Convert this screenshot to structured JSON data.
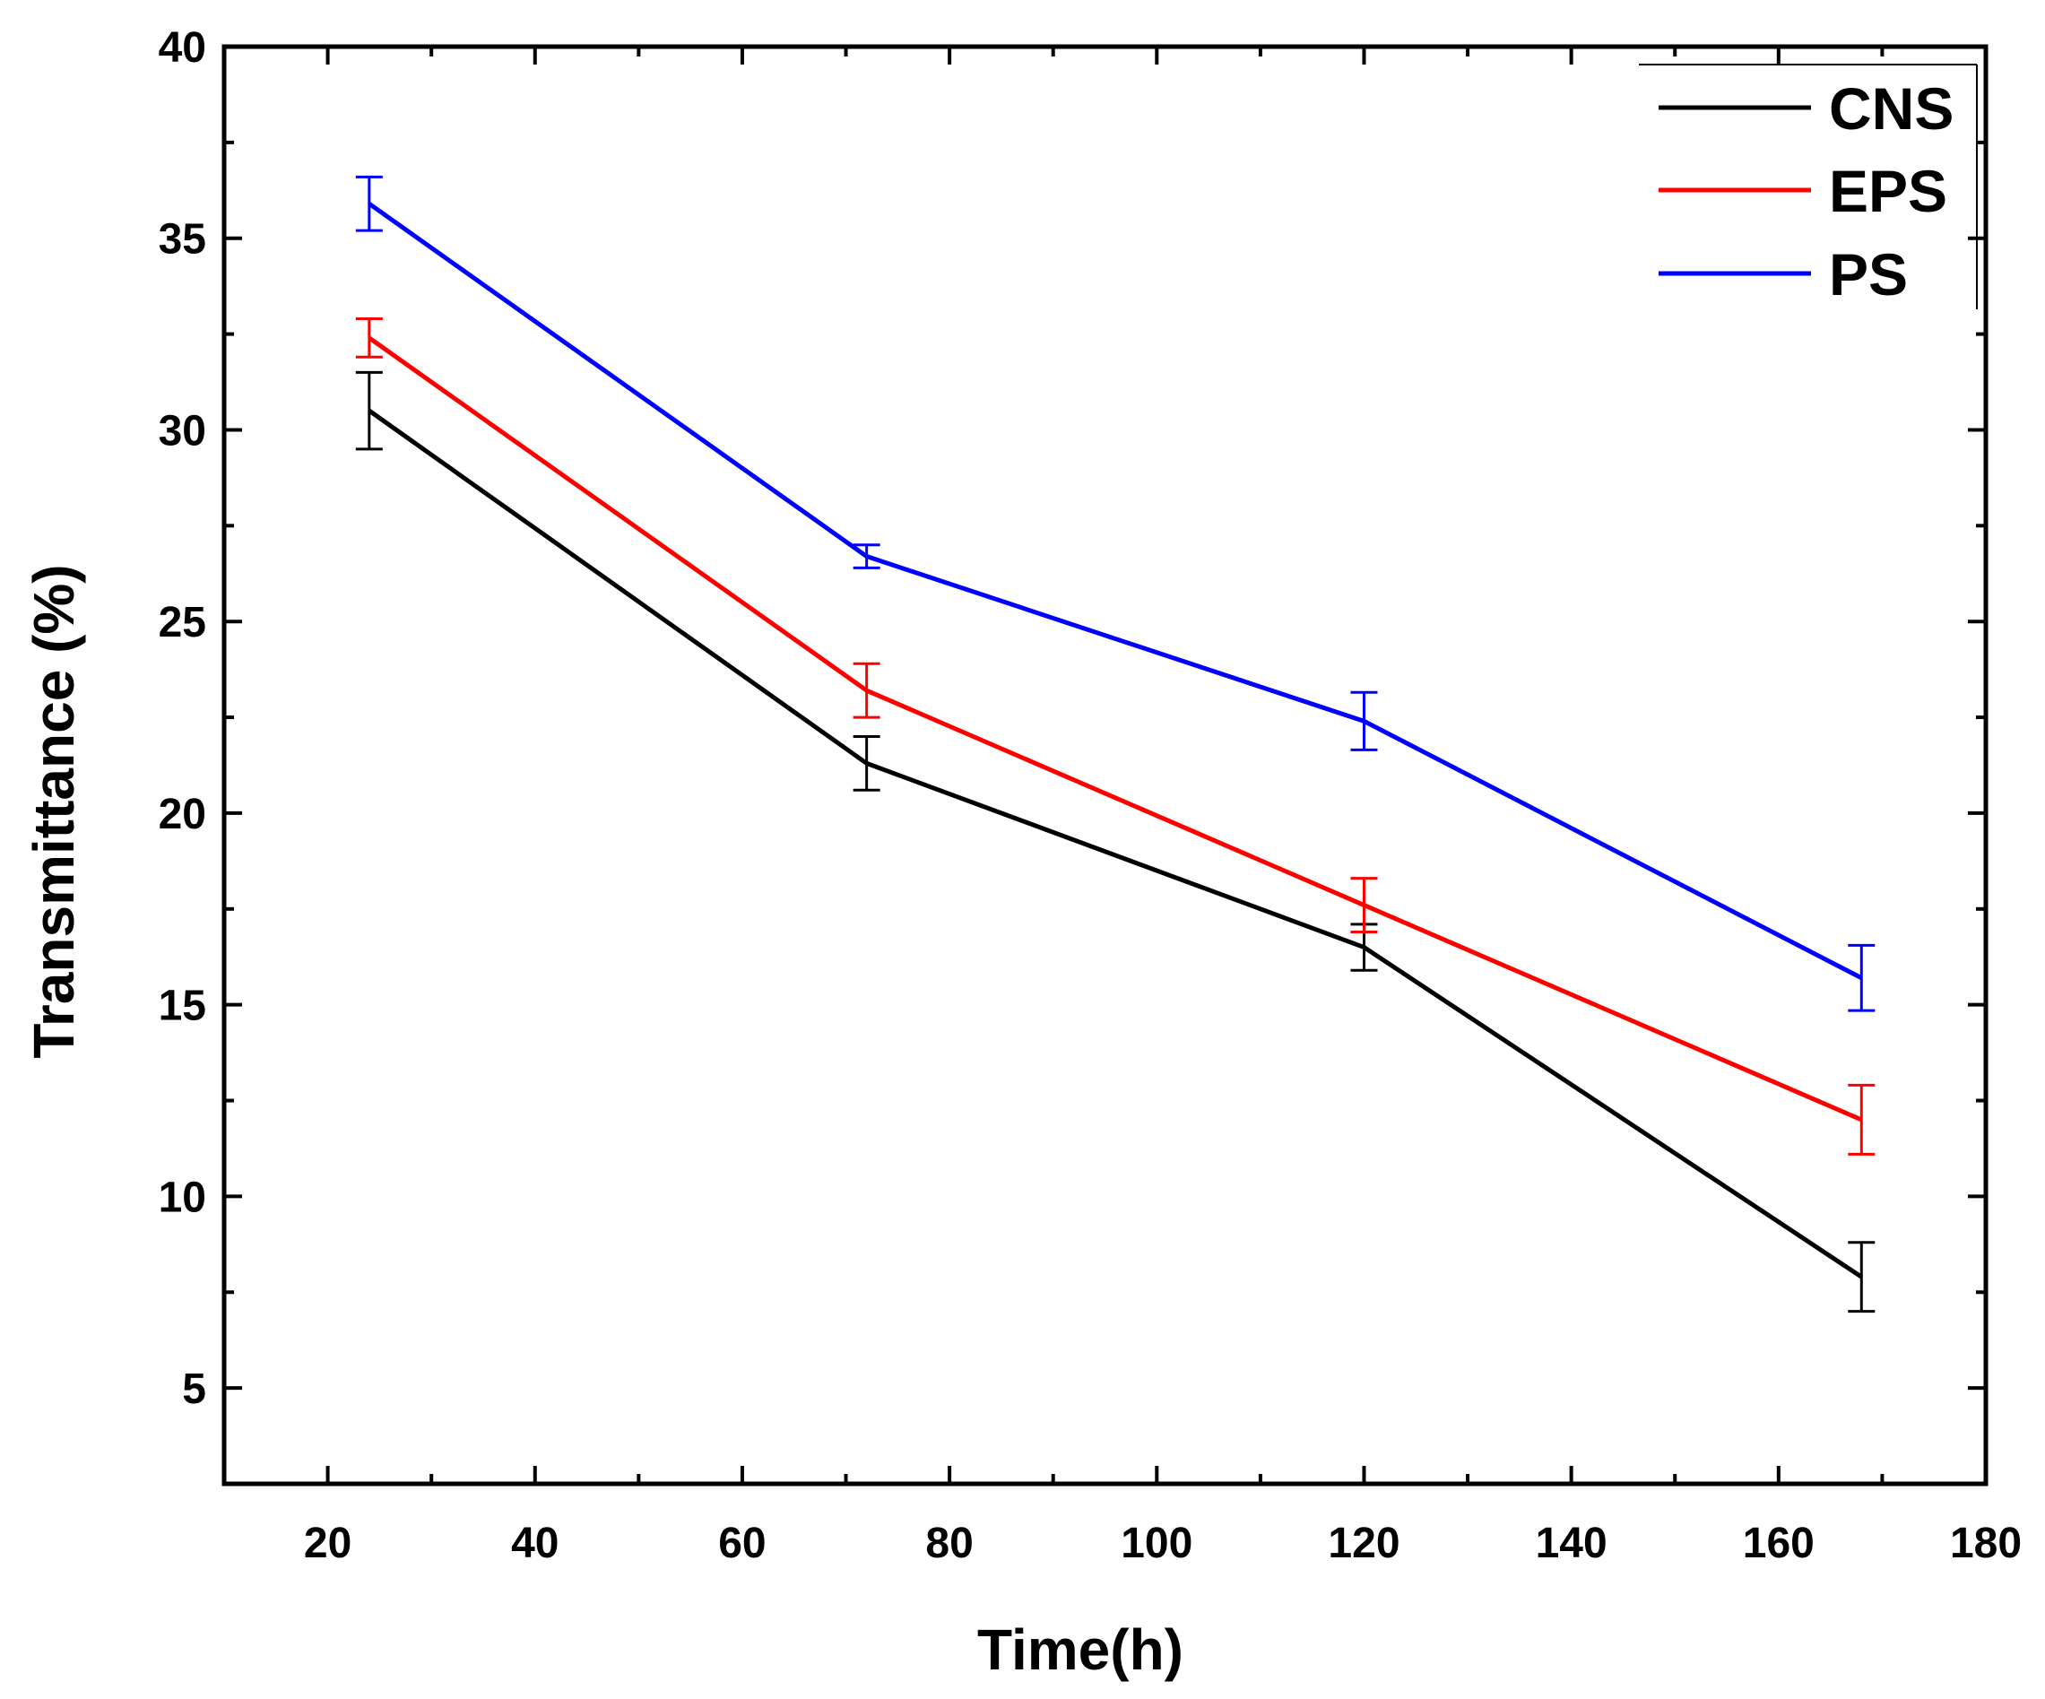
{
  "chart_data": {
    "type": "line",
    "title": "",
    "xlabel": "Time(h)",
    "ylabel": "Transmittance (%)",
    "xlim": [
      10,
      180
    ],
    "ylim": [
      2.5,
      40
    ],
    "xticks": [
      20,
      40,
      60,
      80,
      100,
      120,
      140,
      160,
      180
    ],
    "yticks": [
      5,
      10,
      15,
      20,
      25,
      30,
      35,
      40
    ],
    "x": [
      24,
      72,
      120,
      168
    ],
    "legend_position": "top-right",
    "series": [
      {
        "name": "CNS",
        "color": "#000000",
        "values": [
          30.5,
          21.3,
          16.5,
          7.9
        ],
        "errors": [
          1.0,
          0.7,
          0.6,
          0.9
        ]
      },
      {
        "name": "EPS",
        "color": "#ff0000",
        "values": [
          32.4,
          23.2,
          17.6,
          12.0
        ],
        "errors": [
          0.5,
          0.7,
          0.7,
          0.9
        ]
      },
      {
        "name": "PS",
        "color": "#0000ff",
        "values": [
          35.9,
          26.7,
          22.4,
          15.7
        ],
        "errors": [
          0.7,
          0.3,
          0.75,
          0.85
        ]
      }
    ]
  }
}
